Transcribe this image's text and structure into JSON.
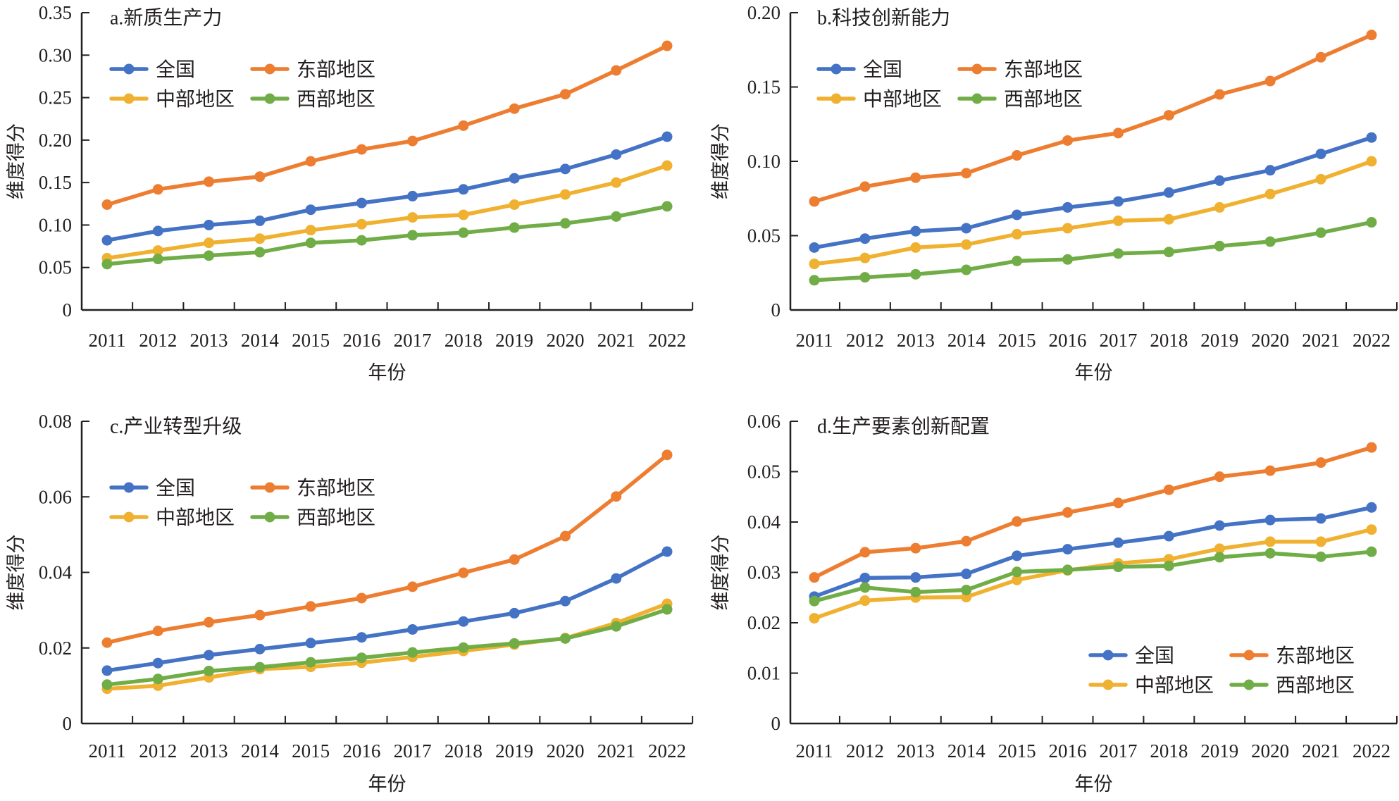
{
  "chart_data": [
    {
      "id": "a",
      "type": "line",
      "title": "a.新质生产力",
      "xlabel": "年份",
      "ylabel": "维度得分",
      "ylim": [
        0,
        0.35
      ],
      "yticks": [
        "0",
        "0.05",
        "0.10",
        "0.15",
        "0.20",
        "0.25",
        "0.30",
        "0.35"
      ],
      "ytick_values": [
        0,
        0.05,
        0.1,
        0.15,
        0.2,
        0.25,
        0.3,
        0.35
      ],
      "categories": [
        "2011",
        "2012",
        "2013",
        "2014",
        "2015",
        "2016",
        "2017",
        "2018",
        "2019",
        "2020",
        "2021",
        "2022"
      ],
      "legend_position": "top-left",
      "grid": false,
      "series": [
        {
          "name": "全国",
          "color": "#4472c4",
          "values": [
            0.082,
            0.093,
            0.1,
            0.105,
            0.118,
            0.126,
            0.134,
            0.142,
            0.155,
            0.166,
            0.183,
            0.204
          ]
        },
        {
          "name": "东部地区",
          "color": "#ed7d31",
          "values": [
            0.124,
            0.142,
            0.151,
            0.157,
            0.175,
            0.189,
            0.199,
            0.217,
            0.237,
            0.254,
            0.282,
            0.311
          ]
        },
        {
          "name": "中部地区",
          "color": "#f0b030",
          "values": [
            0.061,
            0.07,
            0.079,
            0.084,
            0.094,
            0.101,
            0.109,
            0.112,
            0.124,
            0.136,
            0.15,
            0.17
          ]
        },
        {
          "name": "西部地区",
          "color": "#70ad47",
          "values": [
            0.054,
            0.06,
            0.064,
            0.068,
            0.079,
            0.082,
            0.088,
            0.091,
            0.097,
            0.102,
            0.11,
            0.122
          ]
        }
      ]
    },
    {
      "id": "b",
      "type": "line",
      "title": "b.科技创新能力",
      "xlabel": "年份",
      "ylabel": "维度得分",
      "ylim": [
        0,
        0.2
      ],
      "yticks": [
        "0",
        "0.05",
        "0.10",
        "0.15",
        "0.20"
      ],
      "ytick_values": [
        0,
        0.05,
        0.1,
        0.15,
        0.2
      ],
      "categories": [
        "2011",
        "2012",
        "2013",
        "2014",
        "2015",
        "2016",
        "2017",
        "2018",
        "2019",
        "2020",
        "2021",
        "2022"
      ],
      "legend_position": "top-left",
      "grid": false,
      "series": [
        {
          "name": "全国",
          "color": "#4472c4",
          "values": [
            0.042,
            0.048,
            0.053,
            0.055,
            0.064,
            0.069,
            0.073,
            0.079,
            0.087,
            0.094,
            0.105,
            0.116
          ]
        },
        {
          "name": "东部地区",
          "color": "#ed7d31",
          "values": [
            0.073,
            0.083,
            0.089,
            0.092,
            0.104,
            0.114,
            0.119,
            0.131,
            0.145,
            0.154,
            0.17,
            0.185
          ]
        },
        {
          "name": "中部地区",
          "color": "#f0b030",
          "values": [
            0.031,
            0.035,
            0.042,
            0.044,
            0.051,
            0.055,
            0.06,
            0.061,
            0.069,
            0.078,
            0.088,
            0.1
          ]
        },
        {
          "name": "西部地区",
          "color": "#70ad47",
          "values": [
            0.02,
            0.022,
            0.024,
            0.027,
            0.033,
            0.034,
            0.038,
            0.039,
            0.043,
            0.046,
            0.052,
            0.059
          ]
        }
      ]
    },
    {
      "id": "c",
      "type": "line",
      "title": "c.产业转型升级",
      "xlabel": "年份",
      "ylabel": "维度得分",
      "ylim": [
        0,
        0.08
      ],
      "yticks": [
        "0",
        "0.02",
        "0.04",
        "0.06",
        "0.08"
      ],
      "ytick_values": [
        0,
        0.02,
        0.04,
        0.06,
        0.08
      ],
      "categories": [
        "2011",
        "2012",
        "2013",
        "2014",
        "2015",
        "2016",
        "2017",
        "2018",
        "2019",
        "2020",
        "2021",
        "2022"
      ],
      "legend_position": "top-left",
      "grid": false,
      "series": [
        {
          "name": "全国",
          "color": "#4472c4",
          "values": [
            0.014,
            0.016,
            0.0181,
            0.0197,
            0.0213,
            0.0228,
            0.0249,
            0.027,
            0.0292,
            0.0324,
            0.0384,
            0.0455
          ]
        },
        {
          "name": "东部地区",
          "color": "#ed7d31",
          "values": [
            0.0214,
            0.0245,
            0.0268,
            0.0287,
            0.031,
            0.0332,
            0.0362,
            0.0399,
            0.0434,
            0.0496,
            0.0601,
            0.0711
          ]
        },
        {
          "name": "中部地区",
          "color": "#f0b030",
          "values": [
            0.0092,
            0.01,
            0.0122,
            0.0144,
            0.015,
            0.0161,
            0.0176,
            0.0192,
            0.0209,
            0.0226,
            0.0266,
            0.0317
          ]
        },
        {
          "name": "西部地区",
          "color": "#70ad47",
          "values": [
            0.0103,
            0.0118,
            0.0139,
            0.0149,
            0.0162,
            0.0174,
            0.0188,
            0.0201,
            0.0212,
            0.0225,
            0.0257,
            0.0302
          ]
        }
      ]
    },
    {
      "id": "d",
      "type": "line",
      "title": "d.生产要素创新配置",
      "xlabel": "年份",
      "ylabel": "维度得分",
      "ylim": [
        0,
        0.06
      ],
      "yticks": [
        "0",
        "0.01",
        "0.02",
        "0.03",
        "0.04",
        "0.05",
        "0.06"
      ],
      "ytick_values": [
        0,
        0.01,
        0.02,
        0.03,
        0.04,
        0.05,
        0.06
      ],
      "categories": [
        "2011",
        "2012",
        "2013",
        "2014",
        "2015",
        "2016",
        "2017",
        "2018",
        "2019",
        "2020",
        "2021",
        "2022"
      ],
      "legend_position": "bottom-right",
      "grid": false,
      "series": [
        {
          "name": "全国",
          "color": "#4472c4",
          "values": [
            0.0252,
            0.0289,
            0.029,
            0.0297,
            0.0333,
            0.0346,
            0.0359,
            0.0372,
            0.0393,
            0.0404,
            0.0407,
            0.0429
          ]
        },
        {
          "name": "东部地区",
          "color": "#ed7d31",
          "values": [
            0.029,
            0.034,
            0.0348,
            0.0362,
            0.0401,
            0.0419,
            0.0438,
            0.0464,
            0.049,
            0.0502,
            0.0518,
            0.0548
          ]
        },
        {
          "name": "中部地区",
          "color": "#f0b030",
          "values": [
            0.0209,
            0.0244,
            0.025,
            0.0251,
            0.0285,
            0.0304,
            0.0318,
            0.0326,
            0.0347,
            0.0361,
            0.0361,
            0.0385
          ]
        },
        {
          "name": "西部地区",
          "color": "#70ad47",
          "values": [
            0.0243,
            0.027,
            0.0261,
            0.0265,
            0.0301,
            0.0305,
            0.0311,
            0.0313,
            0.033,
            0.0338,
            0.0331,
            0.0341
          ]
        }
      ]
    }
  ]
}
